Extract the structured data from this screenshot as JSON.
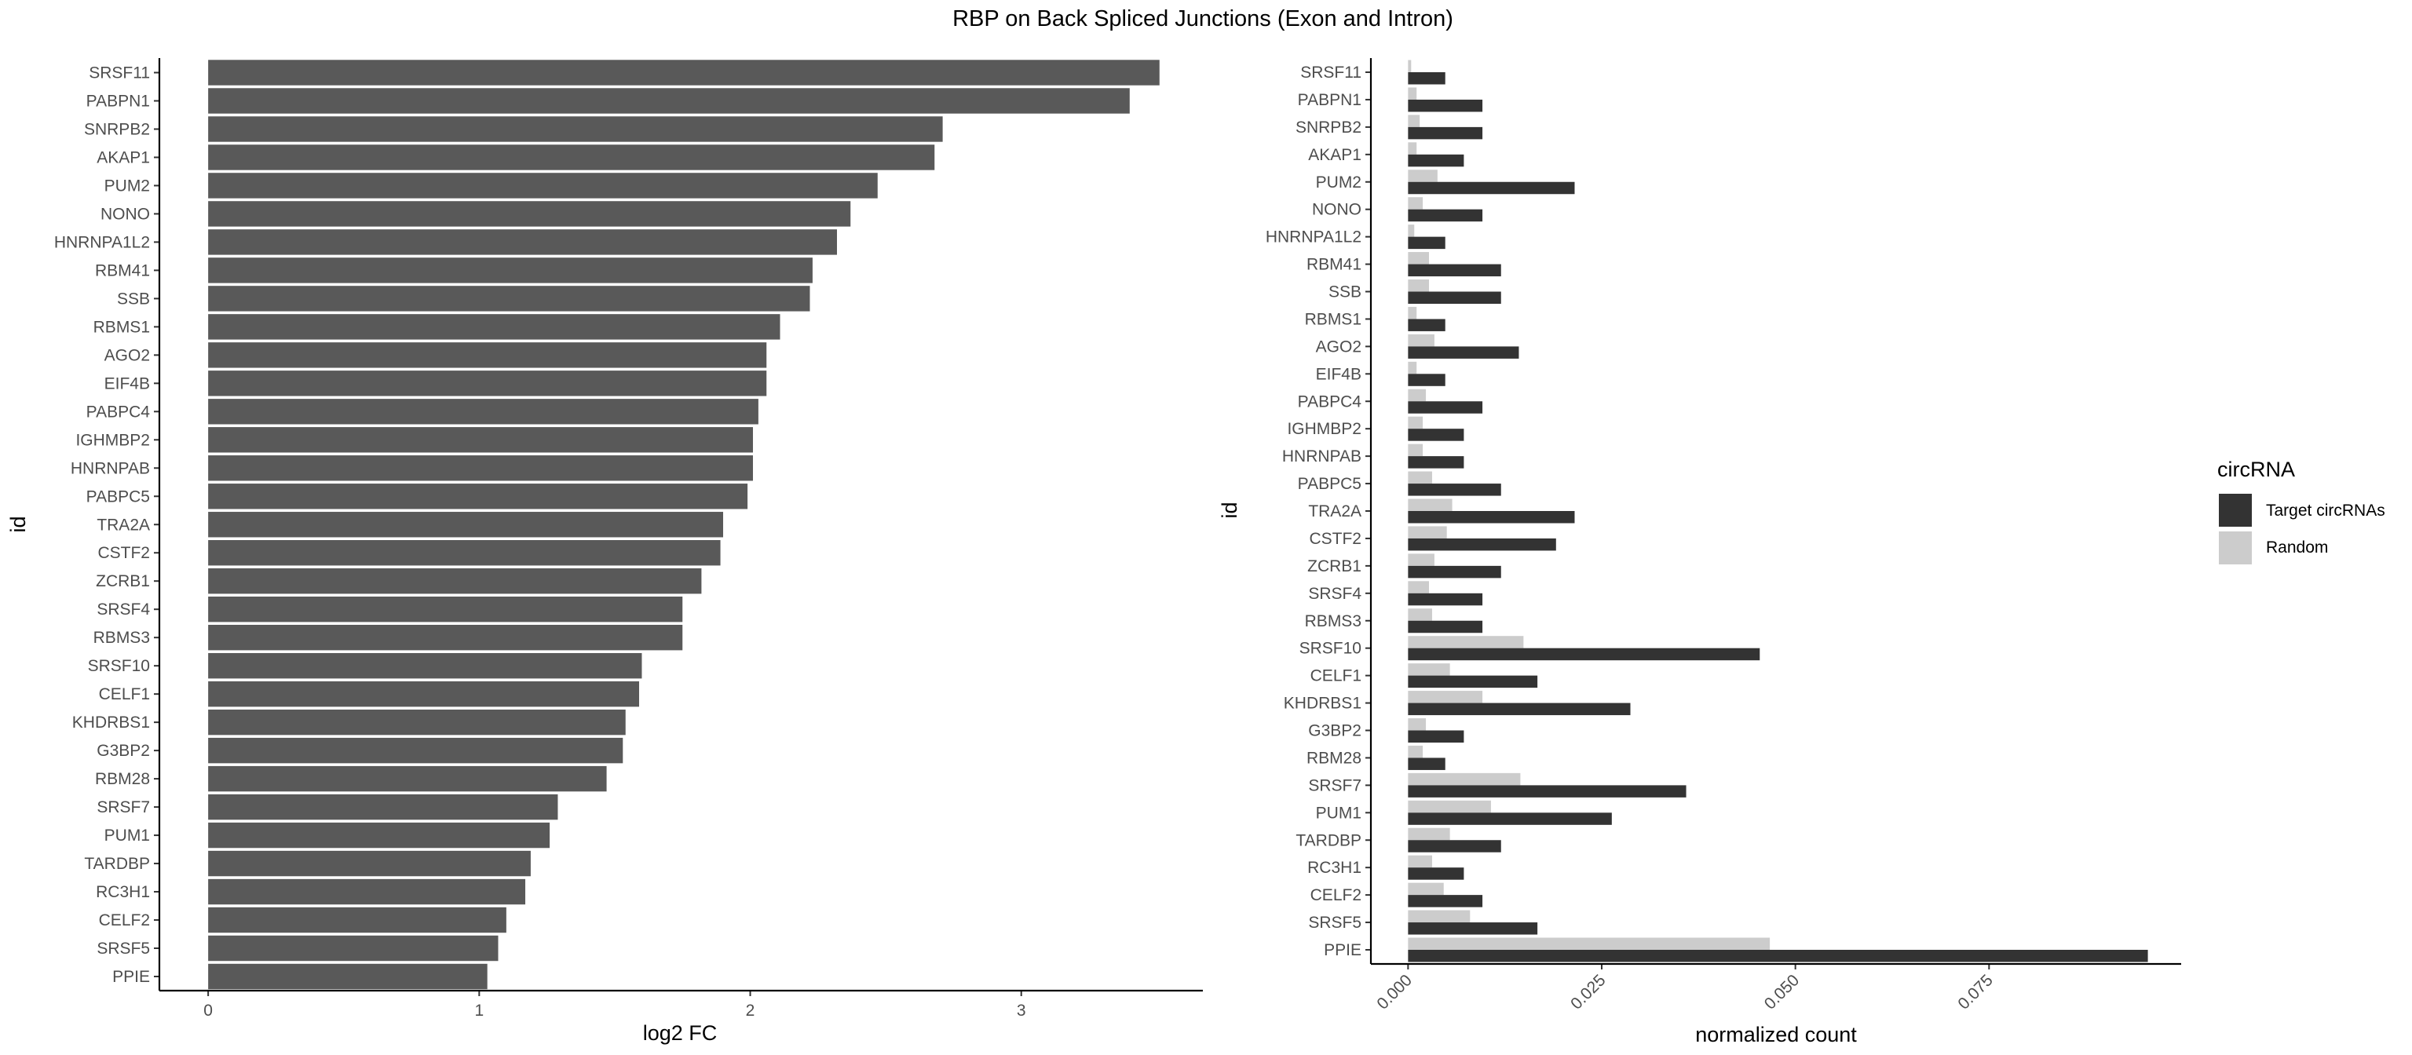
{
  "figure": {
    "title": "RBP on Back Spliced Junctions (Exon and Intron)"
  },
  "chart_data": [
    {
      "type": "bar",
      "orientation": "horizontal",
      "xlabel": "log2 FC",
      "ylabel": "id",
      "xlim": [
        -0.18,
        3.67
      ],
      "xticks": [
        0,
        1,
        2,
        3
      ],
      "grid": false,
      "bar_color": "#595959",
      "categories": [
        "SRSF11",
        "PABPN1",
        "SNRPB2",
        "AKAP1",
        "PUM2",
        "NONO",
        "HNRNPA1L2",
        "RBM41",
        "SSB",
        "RBMS1",
        "AGO2",
        "EIF4B",
        "PABPC4",
        "IGHMBP2",
        "HNRNPAB",
        "PABPC5",
        "TRA2A",
        "CSTF2",
        "ZCRB1",
        "SRSF4",
        "RBMS3",
        "SRSF10",
        "CELF1",
        "KHDRBS1",
        "G3BP2",
        "RBM28",
        "SRSF7",
        "PUM1",
        "TARDBP",
        "RC3H1",
        "CELF2",
        "SRSF5",
        "PPIE"
      ],
      "values": [
        3.51,
        3.4,
        2.71,
        2.68,
        2.47,
        2.37,
        2.32,
        2.23,
        2.22,
        2.11,
        2.06,
        2.06,
        2.03,
        2.01,
        2.01,
        1.99,
        1.9,
        1.89,
        1.82,
        1.75,
        1.75,
        1.6,
        1.59,
        1.54,
        1.53,
        1.47,
        1.29,
        1.26,
        1.19,
        1.17,
        1.1,
        1.07,
        1.03
      ]
    },
    {
      "type": "bar",
      "orientation": "horizontal",
      "grouped": true,
      "xlabel": "normalized count",
      "ylabel": "id",
      "xlim": [
        -0.0048,
        0.0998
      ],
      "xticks": [
        "0.000",
        "0.025",
        "0.050",
        "0.075"
      ],
      "x_tick_label_rotation": -45,
      "grid": false,
      "categories": [
        "SRSF11",
        "PABPN1",
        "SNRPB2",
        "AKAP1",
        "PUM2",
        "NONO",
        "HNRNPA1L2",
        "RBM41",
        "SSB",
        "RBMS1",
        "AGO2",
        "EIF4B",
        "PABPC4",
        "IGHMBP2",
        "HNRNPAB",
        "PABPC5",
        "TRA2A",
        "CSTF2",
        "ZCRB1",
        "SRSF4",
        "RBMS3",
        "SRSF10",
        "CELF1",
        "KHDRBS1",
        "G3BP2",
        "RBM28",
        "SRSF7",
        "PUM1",
        "TARDBP",
        "RC3H1",
        "CELF2",
        "SRSF5",
        "PPIE"
      ],
      "series": [
        {
          "name": "Target circRNAs",
          "color": "#333333",
          "values": [
            0.0048,
            0.0096,
            0.0096,
            0.0072,
            0.0215,
            0.0096,
            0.0048,
            0.012,
            0.012,
            0.0048,
            0.0143,
            0.0048,
            0.0096,
            0.0072,
            0.0072,
            0.012,
            0.0215,
            0.0191,
            0.012,
            0.0096,
            0.0096,
            0.0454,
            0.0167,
            0.0287,
            0.0072,
            0.0048,
            0.0359,
            0.0263,
            0.012,
            0.0072,
            0.0096,
            0.0167,
            0.0955
          ]
        },
        {
          "name": "Random",
          "color": "#cccccc",
          "values": [
            0.0004,
            0.0011,
            0.0015,
            0.0011,
            0.0038,
            0.0019,
            0.0008,
            0.0027,
            0.0027,
            0.0011,
            0.0034,
            0.0011,
            0.0023,
            0.0019,
            0.0019,
            0.0031,
            0.0057,
            0.005,
            0.0034,
            0.0027,
            0.0031,
            0.0149,
            0.0054,
            0.0096,
            0.0023,
            0.0019,
            0.0145,
            0.0107,
            0.0054,
            0.0031,
            0.0046,
            0.008,
            0.0467
          ]
        }
      ],
      "legend": {
        "title": "circRNA",
        "placement": "right"
      }
    }
  ]
}
